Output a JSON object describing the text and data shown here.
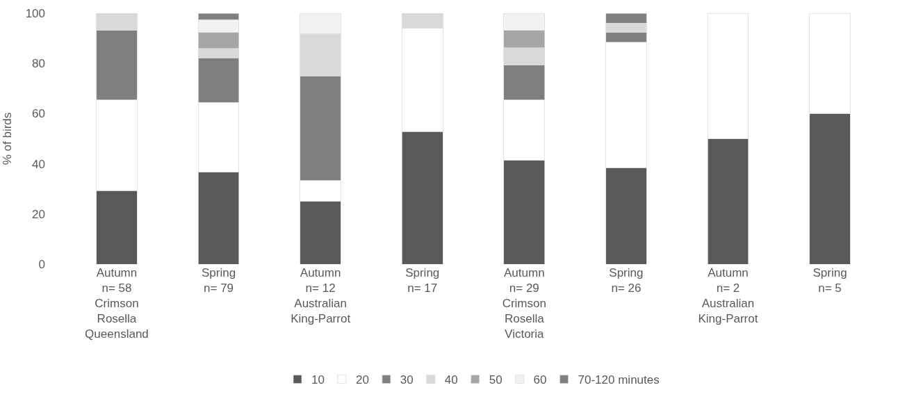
{
  "chart_data": {
    "type": "bar",
    "stacked": true,
    "ylabel": "% of birds",
    "categories": [
      "Autumn\nn= 58\nCrimson\nRosella\nQueensland",
      "Spring\nn= 79",
      "Autumn\nn= 12\nAustralian\nKing-Parrot",
      "Spring\nn= 17",
      "Autumn\nn= 29\nCrimson\nRosella\nVictoria",
      "Spring\nn= 26",
      "Autumn\nn= 2\nAustralian\nKing-Parrot",
      "Spring\nn= 5"
    ],
    "series": [
      {
        "name": "10",
        "color": "#595959",
        "values": [
          29.3,
          36.7,
          25.0,
          52.9,
          41.4,
          38.5,
          50,
          60
        ]
      },
      {
        "name": "20",
        "color": "#ffffff",
        "values": [
          36.2,
          27.8,
          8.3,
          41.2,
          24.1,
          50.0,
          50,
          40
        ]
      },
      {
        "name": "30",
        "color": "#7f7f7f",
        "values": [
          27.6,
          17.7,
          41.7,
          null,
          13.8,
          3.8,
          null,
          null
        ]
      },
      {
        "name": "40",
        "color": "#d9d9d9",
        "values": [
          6.9,
          3.8,
          16.7,
          5.9,
          6.9,
          3.8,
          null,
          null
        ]
      },
      {
        "name": "50",
        "color": "#a6a6a6",
        "values": [
          null,
          6.3,
          null,
          null,
          6.9,
          null,
          null,
          null
        ]
      },
      {
        "name": "60",
        "color": "#f2f2f2",
        "values": [
          null,
          5.1,
          8.3,
          null,
          6.9,
          null,
          null,
          null
        ]
      },
      {
        "name": "70-120 minutes",
        "color": "#808080",
        "values": [
          null,
          2.5,
          null,
          null,
          null,
          3.8,
          null,
          null
        ]
      }
    ],
    "ylim": [
      0,
      100
    ],
    "yticks": [
      0,
      20,
      40,
      60,
      80,
      100
    ],
    "legend": "bottom"
  }
}
